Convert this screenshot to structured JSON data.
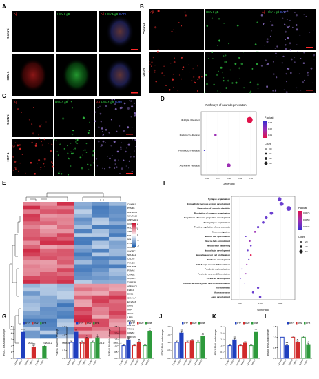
{
  "panels": [
    "A",
    "B",
    "C",
    "D",
    "E",
    "F",
    "G",
    "H",
    "I",
    "J",
    "K",
    "L"
  ],
  "colors": {
    "ab": "#ff3030",
    "gb": "#36e04a",
    "dapi": "#4a6cff",
    "scale": "#ff2a2a",
    "ctrl": "#1f3fbf",
    "hsv": "#d12b2b",
    "treat": "#2e9a3c"
  },
  "micro": {
    "channels": [
      "Aβ",
      "HSV-1 gB",
      "DAPI"
    ],
    "rows": [
      "Control",
      "HSV-1"
    ]
  },
  "panelD": {
    "title": "Pathways of neurodegeneration",
    "xlabel": "GeneRatio",
    "legend_padj": "P.adjust",
    "legend_count": "Count",
    "padj_ticks": [
      "0.03",
      "0.02",
      "0.01"
    ],
    "count_ticks": [
      "30",
      "35",
      "40",
      "45"
    ],
    "x_ticks": [
      "0.06",
      "0.07",
      "0.08",
      "0.09",
      "0.10"
    ],
    "terms": [
      {
        "name": "Multiple diseases",
        "ratio": 0.099,
        "count": 45,
        "padj": 0.005
      },
      {
        "name": "Parkinson disease",
        "ratio": 0.068,
        "count": 33,
        "padj": 0.02
      },
      {
        "name": "Huntington disease",
        "ratio": 0.058,
        "count": 30,
        "padj": 0.03
      },
      {
        "name": "Alzheimer disease",
        "ratio": 0.08,
        "count": 38,
        "padj": 0.018
      }
    ]
  },
  "panelE": {
    "samples": [
      "Mock-1",
      "Mock-2",
      "Mock-3",
      "HSV-1-1",
      "HSV-1-2",
      "HSV-1-3"
    ],
    "genes": [
      "COX6B1",
      "PSMD1",
      "ATP5MC3",
      "NDUFA13",
      "ATP6V1E1",
      "COX7A2",
      "HSD17B10",
      "ATP5F1A",
      "NDUFS6",
      "NDUFB6",
      "PSMB1",
      "COX4I1",
      "UQCRC1",
      "NDUFA1",
      "CALM3",
      "PSMD2",
      "NDUFB5",
      "PSMA2",
      "COX5A",
      "UQCRH",
      "TUBB2B",
      "ATP5MC1",
      "FZD10",
      "DDB1",
      "CSNK1A",
      "EIF2AK3",
      "DKK1",
      "APP",
      "WNT1",
      "LRP6",
      "WNT5B",
      "WNT9B",
      "TRIO1",
      "CREB2",
      "CDKN2C"
    ],
    "legend_ticks": [
      "2",
      "1",
      "0",
      "-1",
      "-2"
    ]
  },
  "panelF": {
    "xlabel": "GeneRatio",
    "legend_padj": "P.adjust",
    "legend_count": "Count",
    "padj_ticks": [
      "0.0075",
      "0.0050",
      "0.0025"
    ],
    "count_ticks": [
      "20",
      "40",
      "60"
    ],
    "x_ticks": [
      "0.02",
      "0.04",
      "0.06"
    ],
    "terms": [
      {
        "name": "Synapse organization",
        "ratio": 0.059,
        "count": 50,
        "padj": 0.003
      },
      {
        "name": "Sympathetic nervous system development",
        "ratio": 0.061,
        "count": 52,
        "padj": 0.004
      },
      {
        "name": "Regulation of synaptic plasticity",
        "ratio": 0.068,
        "count": 60,
        "padj": 0.002
      },
      {
        "name": "Regulation of synapse organization",
        "ratio": 0.051,
        "count": 44,
        "padj": 0.003
      },
      {
        "name": "Regulation of neuron projection development",
        "ratio": 0.046,
        "count": 40,
        "padj": 0.003
      },
      {
        "name": "Postsynapse organization",
        "ratio": 0.043,
        "count": 36,
        "padj": 0.004
      },
      {
        "name": "Positive regulation of neurogenesis",
        "ratio": 0.038,
        "count": 32,
        "padj": 0.004
      },
      {
        "name": "Neuron migration",
        "ratio": 0.035,
        "count": 28,
        "padj": 0.005
      },
      {
        "name": "Neuron fate specification",
        "ratio": 0.026,
        "count": 22,
        "padj": 0.004
      },
      {
        "name": "Neuron fate commitment",
        "ratio": 0.03,
        "count": 24,
        "padj": 0.005
      },
      {
        "name": "Neural tube patterning",
        "ratio": 0.031,
        "count": 26,
        "padj": 0.004
      },
      {
        "name": "Neural tube development",
        "ratio": 0.028,
        "count": 24,
        "padj": 0.004
      },
      {
        "name": "Neural precursor cell proliferation",
        "ratio": 0.031,
        "count": 26,
        "padj": 0.008
      },
      {
        "name": "Midbrain development",
        "ratio": 0.029,
        "count": 24,
        "padj": 0.004
      },
      {
        "name": "GABAergic neuron differentiation",
        "ratio": 0.027,
        "count": 22,
        "padj": 0.005
      },
      {
        "name": "Forebrain regionalization",
        "ratio": 0.022,
        "count": 18,
        "padj": 0.004
      },
      {
        "name": "Forebrain neuron differentiation",
        "ratio": 0.026,
        "count": 22,
        "padj": 0.005
      },
      {
        "name": "Forebrain development",
        "ratio": 0.021,
        "count": 18,
        "padj": 0.004
      },
      {
        "name": "Central nervous system neuron differentiation",
        "ratio": 0.025,
        "count": 20,
        "padj": 0.004
      },
      {
        "name": "Axonogenesis",
        "ratio": 0.038,
        "count": 32,
        "padj": 0.003
      },
      {
        "name": "Axon extension",
        "ratio": 0.033,
        "count": 28,
        "padj": 0.004
      },
      {
        "name": "Axon development",
        "ratio": 0.04,
        "count": 34,
        "padj": 0.003
      }
    ]
  },
  "chart_data": [
    {
      "panel": "G",
      "type": "bar",
      "ylabel": "HSV-1 RNA fold change",
      "legend": [
        "DT7",
        "DM2",
        "DH8"
      ],
      "ylim": [
        0,
        5
      ],
      "yticks": [
        "0",
        "1",
        "2",
        "3",
        "4",
        "5"
      ],
      "categories": [
        "Control",
        "HSV-1",
        "Control",
        "HSV-1",
        "Control",
        "HSV-1"
      ],
      "values": [
        0.02,
        4.1,
        0.02,
        1.8,
        0.02,
        1.9
      ],
      "stars": [
        "",
        "****",
        "",
        "****",
        "",
        "****"
      ]
    },
    {
      "panel": "H",
      "type": "bar",
      "ylabel": "PSEN1 RNA fold change",
      "legend": [
        "DT7",
        "DM2",
        "DH8"
      ],
      "ylim": [
        0,
        2.0
      ],
      "yticks": [
        "0.0",
        "0.5",
        "1.0",
        "1.5",
        "2.0"
      ],
      "categories": [
        "Control",
        "HSV-1",
        "Control",
        "HSV-1",
        "Control",
        "HSV-1"
      ],
      "values": [
        1.0,
        1.65,
        1.0,
        1.25,
        1.0,
        1.3
      ],
      "stars": [
        "",
        "***",
        "",
        "*",
        "",
        "*"
      ]
    },
    {
      "panel": "I",
      "type": "bar",
      "ylabel": "PSEN2 RNA fold change",
      "legend": [
        "DT7",
        "DM2",
        "DH8"
      ],
      "ylim": [
        0,
        2.5
      ],
      "yticks": [
        "0.0",
        "0.5",
        "1.0",
        "1.5",
        "2.0",
        "2.5"
      ],
      "categories": [
        "Control",
        "HSV-1",
        "Control",
        "HSV-1",
        "Control",
        "HSV-1"
      ],
      "values": [
        1.0,
        1.45,
        1.0,
        1.25,
        1.0,
        2.1
      ],
      "stars": [
        "",
        "**",
        "",
        "**",
        "",
        "**"
      ]
    },
    {
      "panel": "J",
      "type": "bar",
      "ylabel": "STH2 RNA fold change",
      "legend": [
        "DT7",
        "DM2",
        "DH8"
      ],
      "ylim": [
        0,
        2.0
      ],
      "yticks": [
        "0.0",
        "0.5",
        "1.0",
        "1.5",
        "2.0"
      ],
      "categories": [
        "Control",
        "HSV-1",
        "Control",
        "HSV-1",
        "Control",
        "HSV-1"
      ],
      "values": [
        1.0,
        1.6,
        1.0,
        1.1,
        1.0,
        1.4
      ],
      "stars": [
        "",
        "***",
        "",
        "",
        "",
        "**"
      ]
    },
    {
      "panel": "K",
      "type": "bar",
      "ylabel": "ASCL RNA fold change",
      "legend": [
        "DT7",
        "DM2",
        "DH8"
      ],
      "ylim": [
        0,
        2.5
      ],
      "yticks": [
        "0.0",
        "0.5",
        "1.0",
        "1.5",
        "2.0",
        "2.5"
      ],
      "categories": [
        "Control",
        "HSV-1",
        "Control",
        "HSV-1",
        "Control",
        "HSV-1"
      ],
      "values": [
        1.0,
        1.45,
        1.0,
        1.2,
        1.0,
        2.05
      ],
      "stars": [
        "",
        "***",
        "",
        "*",
        "",
        "***"
      ]
    },
    {
      "panel": "L",
      "type": "bar",
      "ylabel": "BACE RNA fold change",
      "legend": [
        "DT7",
        "DM2",
        "DH8"
      ],
      "ylim": [
        0,
        1.5
      ],
      "yticks": [
        "0.0",
        "0.5",
        "1.0",
        "1.5"
      ],
      "categories": [
        "Control",
        "HSV-1",
        "Control",
        "HSV-1",
        "Control",
        "HSV-1"
      ],
      "values": [
        1.0,
        0.6,
        1.0,
        0.75,
        1.0,
        0.65
      ],
      "stars": [
        "",
        "***",
        "",
        "**",
        "",
        "*"
      ]
    }
  ]
}
